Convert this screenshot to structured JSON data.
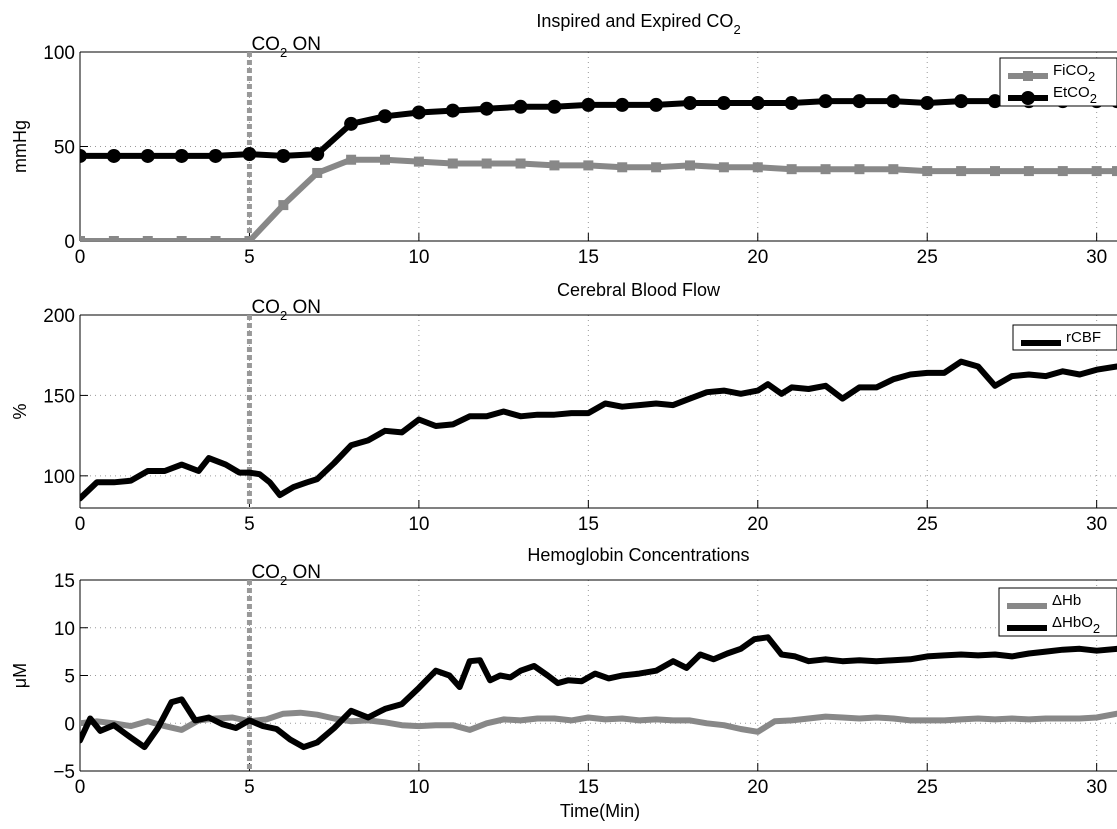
{
  "xlabel": "Time(Min)",
  "chart_data": [
    {
      "type": "line",
      "title": "Inspired and Expired CO",
      "title_sub": "2",
      "xlabel": "",
      "ylabel": "mmHg",
      "xlim": [
        0,
        30.6
      ],
      "ylim": [
        0,
        100
      ],
      "xticks": [
        "0",
        "5",
        "10",
        "15",
        "20",
        "25",
        "30"
      ],
      "yticks": [
        "0",
        "50",
        "100"
      ],
      "grid": true,
      "legend_position": "top-right",
      "annotation": {
        "text": "CO",
        "sub": "2",
        "tail": " ON",
        "x": 5
      },
      "series": [
        {
          "name": "FiCO",
          "name_sub": "2",
          "color": "#888888",
          "marker": "square",
          "x": [
            0,
            1,
            2,
            3,
            4,
            5,
            6,
            7,
            8,
            9,
            10,
            11,
            12,
            13,
            14,
            15,
            16,
            17,
            18,
            19,
            20,
            21,
            22,
            23,
            24,
            25,
            26,
            27,
            28,
            29,
            30,
            30.6
          ],
          "values": [
            0,
            0,
            0,
            0,
            0,
            0,
            19,
            36,
            43,
            43,
            42,
            41,
            41,
            41,
            40,
            40,
            39,
            39,
            40,
            39,
            39,
            38,
            38,
            38,
            38,
            37,
            37,
            37,
            37,
            37,
            37,
            37
          ]
        },
        {
          "name": "EtCO",
          "name_sub": "2",
          "color": "#000000",
          "marker": "circle",
          "x": [
            0,
            1,
            2,
            3,
            4,
            5,
            6,
            7,
            8,
            9,
            10,
            11,
            12,
            13,
            14,
            15,
            16,
            17,
            18,
            19,
            20,
            21,
            22,
            23,
            24,
            25,
            26,
            27,
            28,
            29,
            30,
            30.6
          ],
          "values": [
            45,
            45,
            45,
            45,
            45,
            46,
            45,
            46,
            62,
            66,
            68,
            69,
            70,
            71,
            71,
            72,
            72,
            72,
            73,
            73,
            73,
            73,
            74,
            74,
            74,
            73,
            74,
            74,
            74,
            74,
            74,
            74
          ]
        }
      ]
    },
    {
      "type": "line",
      "title": "Cerebral Blood Flow",
      "xlabel": "",
      "ylabel": "%",
      "xlim": [
        0,
        30.6
      ],
      "ylim": [
        80,
        200
      ],
      "xticks": [
        "0",
        "5",
        "10",
        "15",
        "20",
        "25",
        "30"
      ],
      "yticks": [
        "100",
        "150",
        "200"
      ],
      "grid": true,
      "legend_position": "top-right",
      "annotation": {
        "text": "CO",
        "sub": "2",
        "tail": " ON",
        "x": 5
      },
      "series": [
        {
          "name": "rCBF",
          "color": "#000000",
          "x": [
            0,
            0.5,
            1,
            1.5,
            2,
            2.5,
            3,
            3.5,
            3.8,
            4.3,
            4.7,
            5,
            5.3,
            5.6,
            5.9,
            6.3,
            6.7,
            7,
            7.5,
            8,
            8.5,
            9,
            9.5,
            10,
            10.5,
            11,
            11.5,
            12,
            12.5,
            13,
            13.5,
            14,
            14.5,
            15,
            15.5,
            16,
            16.5,
            17,
            17.5,
            18,
            18.5,
            19,
            19.5,
            20,
            20.3,
            20.7,
            21,
            21.5,
            22,
            22.5,
            23,
            23.5,
            24,
            24.5,
            25,
            25.5,
            26,
            26.5,
            27,
            27.5,
            28,
            28.5,
            29,
            29.5,
            30,
            30.6
          ],
          "values": [
            86,
            96,
            96,
            97,
            103,
            103,
            107,
            103,
            111,
            107,
            102,
            102,
            101,
            96,
            88,
            93,
            96,
            98,
            108,
            119,
            122,
            128,
            127,
            135,
            131,
            132,
            137,
            137,
            140,
            137,
            138,
            138,
            139,
            139,
            145,
            143,
            144,
            145,
            144,
            148,
            152,
            153,
            151,
            153,
            157,
            151,
            155,
            154,
            156,
            148,
            155,
            155,
            160,
            163,
            164,
            164,
            171,
            168,
            156,
            162,
            163,
            162,
            165,
            163,
            166,
            168
          ]
        }
      ]
    },
    {
      "type": "line",
      "title": "Hemoglobin Concentrations",
      "xlabel": "Time(Min)",
      "ylabel": "μM",
      "xlim": [
        0,
        30.6
      ],
      "ylim": [
        -5,
        15
      ],
      "xticks": [
        "0",
        "5",
        "10",
        "15",
        "20",
        "25",
        "30"
      ],
      "yticks": [
        "−5",
        "0",
        "5",
        "10",
        "15"
      ],
      "grid": true,
      "legend_position": "top-right",
      "annotation": {
        "text": "CO",
        "sub": "2",
        "tail": " ON",
        "x": 5
      },
      "series": [
        {
          "name": "ΔHb",
          "color": "#888888",
          "x": [
            0,
            0.5,
            1,
            1.5,
            2,
            2.5,
            3,
            3.5,
            4,
            4.5,
            5,
            5.5,
            6,
            6.5,
            7,
            7.5,
            8,
            8.5,
            9,
            9.5,
            10,
            10.5,
            11,
            11.5,
            12,
            12.5,
            13,
            13.5,
            14,
            14.5,
            15,
            15.5,
            16,
            16.5,
            17,
            17.5,
            18,
            18.5,
            19,
            19.5,
            20,
            20.5,
            21,
            21.5,
            22,
            22.5,
            23,
            23.5,
            24,
            24.5,
            25,
            25.5,
            26,
            26.5,
            27,
            27.5,
            28,
            28.5,
            29,
            29.5,
            30,
            30.6
          ],
          "values": [
            0,
            0.2,
            0,
            -0.3,
            0.2,
            -0.3,
            -0.7,
            0.3,
            0.5,
            0.6,
            0.2,
            0.4,
            1,
            1.1,
            0.9,
            0.5,
            0.2,
            0.3,
            0.1,
            -0.2,
            -0.3,
            -0.2,
            -0.2,
            -0.7,
            0,
            0.4,
            0.3,
            0.5,
            0.5,
            0.3,
            0.6,
            0.4,
            0.5,
            0.3,
            0.4,
            0.3,
            0.3,
            0,
            -0.2,
            -0.6,
            -0.9,
            0.2,
            0.3,
            0.5,
            0.7,
            0.6,
            0.5,
            0.6,
            0.5,
            0.3,
            0.3,
            0.3,
            0.4,
            0.5,
            0.4,
            0.5,
            0.4,
            0.5,
            0.5,
            0.5,
            0.6,
            1
          ]
        },
        {
          "name": "ΔHbO",
          "name_sub": "2",
          "color": "#000000",
          "x": [
            0,
            0.3,
            0.6,
            1,
            1.5,
            1.9,
            2.3,
            2.7,
            3,
            3.4,
            3.8,
            4.2,
            4.6,
            5,
            5.4,
            5.8,
            6.2,
            6.6,
            7,
            7.5,
            8,
            8.5,
            9,
            9.5,
            10,
            10.5,
            10.9,
            11.2,
            11.5,
            11.8,
            12.1,
            12.4,
            12.7,
            13,
            13.4,
            13.8,
            14.1,
            14.4,
            14.8,
            15.2,
            15.6,
            16,
            16.5,
            17,
            17.5,
            17.9,
            18.3,
            18.7,
            19.1,
            19.5,
            19.9,
            20.3,
            20.7,
            21.1,
            21.5,
            22,
            22.5,
            23,
            23.5,
            24,
            24.5,
            25,
            25.5,
            26,
            26.5,
            27,
            27.5,
            28,
            28.5,
            29,
            29.5,
            30,
            30.6
          ],
          "values": [
            -1.8,
            0.5,
            -0.8,
            -0.2,
            -1.5,
            -2.5,
            -0.5,
            2.2,
            2.5,
            0.3,
            0.6,
            -0.1,
            -0.5,
            0.3,
            -0.3,
            -0.6,
            -1.7,
            -2.5,
            -2,
            -0.5,
            1.3,
            0.6,
            1.5,
            2,
            3.7,
            5.5,
            5,
            3.8,
            6.5,
            6.6,
            4.5,
            5,
            4.8,
            5.5,
            6,
            5,
            4.2,
            4.5,
            4.4,
            5.2,
            4.7,
            5,
            5.2,
            5.5,
            6.5,
            5.8,
            7.2,
            6.7,
            7.3,
            7.8,
            8.8,
            9,
            7.2,
            7,
            6.5,
            6.7,
            6.5,
            6.6,
            6.5,
            6.6,
            6.7,
            7,
            7.1,
            7.2,
            7.1,
            7.2,
            7,
            7.3,
            7.5,
            7.7,
            7.8,
            7.6,
            7.8
          ]
        }
      ]
    }
  ]
}
